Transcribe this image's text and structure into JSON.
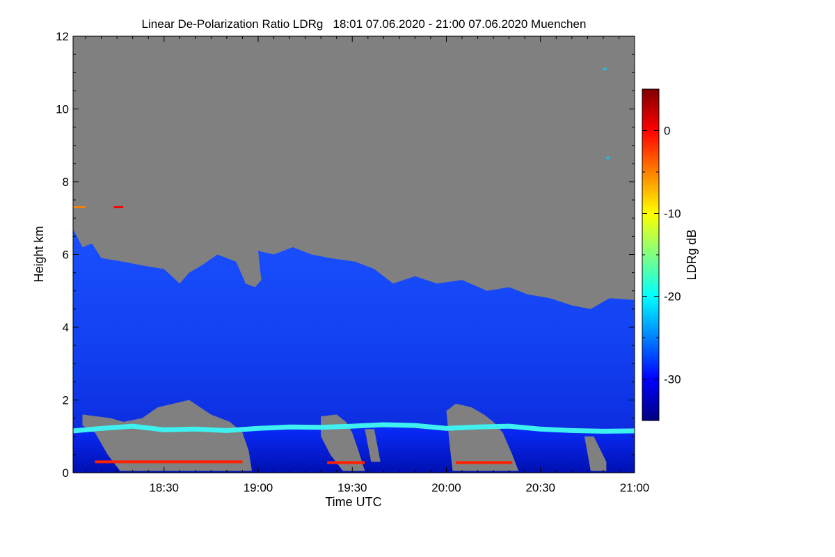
{
  "chart_data": {
    "type": "heatmap",
    "title": "Linear De-Polarization Ratio LDRg   18:01 07.06.2020 - 21:00 07.06.2020 Muenchen",
    "xlabel": "Time UTC",
    "ylabel": "Height km",
    "colorbar_label": "LDRg dB",
    "x_range_minutes_utc": [
      1081,
      1260
    ],
    "x_ticks": [
      {
        "minutes": 1110,
        "label": "18:30"
      },
      {
        "minutes": 1140,
        "label": "19:00"
      },
      {
        "minutes": 1170,
        "label": "19:30"
      },
      {
        "minutes": 1200,
        "label": "20:00"
      },
      {
        "minutes": 1230,
        "label": "20:30"
      },
      {
        "minutes": 1260,
        "label": "21:00"
      }
    ],
    "y_range_km": [
      0,
      12
    ],
    "y_ticks": [
      0,
      2,
      4,
      6,
      8,
      10,
      12
    ],
    "colorbar_range_db": [
      -35,
      5
    ],
    "colorbar_ticks": [
      0,
      -10,
      -20,
      -30
    ],
    "colormap": [
      "#00007f",
      "#0000ff",
      "#0080ff",
      "#00ffff",
      "#80ff80",
      "#ffff00",
      "#ff8000",
      "#ff0000",
      "#7f0000"
    ],
    "nodata_color": "#808080",
    "features": {
      "cloud_top_km": [
        {
          "t": 1081,
          "h": 6.7
        },
        {
          "t": 1084,
          "h": 6.2
        },
        {
          "t": 1087,
          "h": 6.3
        },
        {
          "t": 1090,
          "h": 5.9
        },
        {
          "t": 1097,
          "h": 5.8
        },
        {
          "t": 1103,
          "h": 5.7
        },
        {
          "t": 1110,
          "h": 5.6
        },
        {
          "t": 1115,
          "h": 5.2
        },
        {
          "t": 1118,
          "h": 5.5
        },
        {
          "t": 1122,
          "h": 5.7
        },
        {
          "t": 1127,
          "h": 6.0
        },
        {
          "t": 1133,
          "h": 5.8
        },
        {
          "t": 1136,
          "h": 5.2
        },
        {
          "t": 1139,
          "h": 5.1
        },
        {
          "t": 1141,
          "h": 5.3
        },
        {
          "t": 1140,
          "h": 6.1
        },
        {
          "t": 1145,
          "h": 6.0
        },
        {
          "t": 1151,
          "h": 6.2
        },
        {
          "t": 1157,
          "h": 6.0
        },
        {
          "t": 1163,
          "h": 5.9
        },
        {
          "t": 1171,
          "h": 5.8
        },
        {
          "t": 1177,
          "h": 5.6
        },
        {
          "t": 1183,
          "h": 5.2
        },
        {
          "t": 1190,
          "h": 5.4
        },
        {
          "t": 1197,
          "h": 5.2
        },
        {
          "t": 1205,
          "h": 5.3
        },
        {
          "t": 1213,
          "h": 5.0
        },
        {
          "t": 1220,
          "h": 5.1
        },
        {
          "t": 1226,
          "h": 4.9
        },
        {
          "t": 1233,
          "h": 4.8
        },
        {
          "t": 1240,
          "h": 4.6
        },
        {
          "t": 1246,
          "h": 4.5
        },
        {
          "t": 1252,
          "h": 4.8
        },
        {
          "t": 1260,
          "h": 4.75
        }
      ],
      "boundary_layer_top_km": [
        {
          "t": 1081,
          "h": 1.15
        },
        {
          "t": 1090,
          "h": 1.22
        },
        {
          "t": 1100,
          "h": 1.28
        },
        {
          "t": 1110,
          "h": 1.18
        },
        {
          "t": 1120,
          "h": 1.2
        },
        {
          "t": 1130,
          "h": 1.16
        },
        {
          "t": 1140,
          "h": 1.22
        },
        {
          "t": 1150,
          "h": 1.26
        },
        {
          "t": 1160,
          "h": 1.25
        },
        {
          "t": 1170,
          "h": 1.28
        },
        {
          "t": 1180,
          "h": 1.32
        },
        {
          "t": 1190,
          "h": 1.3
        },
        {
          "t": 1200,
          "h": 1.22
        },
        {
          "t": 1210,
          "h": 1.26
        },
        {
          "t": 1220,
          "h": 1.28
        },
        {
          "t": 1230,
          "h": 1.2
        },
        {
          "t": 1240,
          "h": 1.16
        },
        {
          "t": 1250,
          "h": 1.14
        },
        {
          "t": 1260,
          "h": 1.15
        }
      ],
      "low_level_nodata_patches": [
        [
          {
            "t": 1084,
            "h": 1.6
          },
          {
            "t": 1093,
            "h": 1.5
          },
          {
            "t": 1097,
            "h": 1.4
          },
          {
            "t": 1103,
            "h": 1.5
          },
          {
            "t": 1108,
            "h": 1.8
          },
          {
            "t": 1113,
            "h": 1.9
          },
          {
            "t": 1118,
            "h": 2.0
          },
          {
            "t": 1125,
            "h": 1.6
          },
          {
            "t": 1131,
            "h": 1.4
          },
          {
            "t": 1135,
            "h": 1.1
          },
          {
            "t": 1137,
            "h": 0.6
          },
          {
            "t": 1138,
            "h": 0.05
          },
          {
            "t": 1096,
            "h": 0.05
          },
          {
            "t": 1092,
            "h": 0.5
          },
          {
            "t": 1088,
            "h": 1.1
          },
          {
            "t": 1084,
            "h": 1.3
          }
        ],
        [
          {
            "t": 1160,
            "h": 1.55
          },
          {
            "t": 1165,
            "h": 1.6
          },
          {
            "t": 1168,
            "h": 1.4
          },
          {
            "t": 1170,
            "h": 1.1
          },
          {
            "t": 1172,
            "h": 0.6
          },
          {
            "t": 1174,
            "h": 0.05
          },
          {
            "t": 1167,
            "h": 0.05
          },
          {
            "t": 1163,
            "h": 0.5
          },
          {
            "t": 1160,
            "h": 1.0
          }
        ],
        [
          {
            "t": 1174,
            "h": 1.2
          },
          {
            "t": 1177,
            "h": 1.2
          },
          {
            "t": 1179,
            "h": 0.3
          },
          {
            "t": 1176,
            "h": 0.3
          }
        ],
        [
          {
            "t": 1200,
            "h": 1.7
          },
          {
            "t": 1203,
            "h": 1.9
          },
          {
            "t": 1208,
            "h": 1.8
          },
          {
            "t": 1212,
            "h": 1.6
          },
          {
            "t": 1215,
            "h": 1.4
          },
          {
            "t": 1218,
            "h": 1.1
          },
          {
            "t": 1221,
            "h": 0.5
          },
          {
            "t": 1223,
            "h": 0.05
          },
          {
            "t": 1202,
            "h": 0.05
          },
          {
            "t": 1201,
            "h": 0.8
          }
        ],
        [
          {
            "t": 1244,
            "h": 1.0
          },
          {
            "t": 1247,
            "h": 1.0
          },
          {
            "t": 1251,
            "h": 0.3
          },
          {
            "t": 1251,
            "h": 0.05
          },
          {
            "t": 1246,
            "h": 0.05
          }
        ]
      ],
      "surface_red_bands": [
        {
          "t0": 1088,
          "t1": 1135,
          "h": 0.3
        },
        {
          "t0": 1162,
          "t1": 1174,
          "h": 0.28
        },
        {
          "t0": 1203,
          "t1": 1221,
          "h": 0.28
        }
      ],
      "isolated_returns": [
        {
          "t": 1081,
          "t1": 1085,
          "h": 7.3,
          "ldr": -5
        },
        {
          "t": 1094,
          "t1": 1097,
          "h": 7.3,
          "ldr": 0
        },
        {
          "t": 1251,
          "t1": 1252,
          "h": 8.65,
          "ldr": -22
        },
        {
          "t": 1250,
          "t1": 1251,
          "h": 11.1,
          "ldr": -22
        }
      ]
    }
  }
}
